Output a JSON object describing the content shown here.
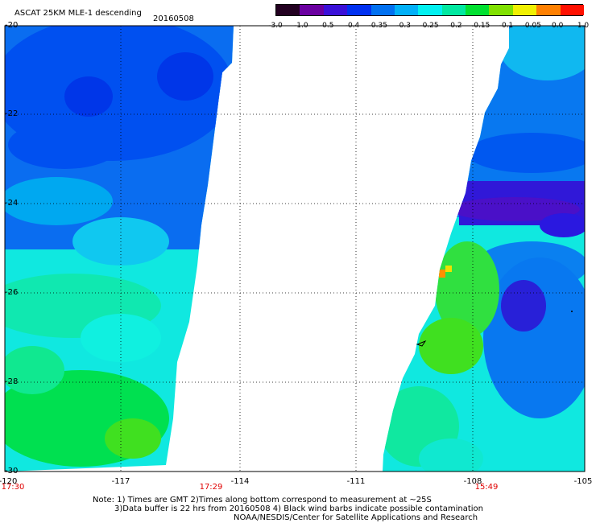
{
  "header": {
    "title": "ASCAT 25KM MLE-1 descending",
    "date": "20160508"
  },
  "colorbar": {
    "labels": [
      "-3.0",
      "-1.0",
      "-0.5",
      "-0.4",
      "-0.35",
      "-0.3",
      "-0.25",
      "-0.2",
      "-0.15",
      "-0.1",
      "-0.05",
      "0.0",
      "1.0"
    ],
    "colors": [
      "#220020",
      "#6a00a0",
      "#3a10d8",
      "#0030f0",
      "#0070f0",
      "#00b0f8",
      "#00f0f0",
      "#00e8a0",
      "#00e030",
      "#80e000",
      "#f0f000",
      "#ff8000",
      "#ff1000"
    ]
  },
  "axes": {
    "x_ticks": [
      "-120",
      "-117",
      "-114",
      "-111",
      "-108",
      "-105"
    ],
    "y_ticks": [
      "-20",
      "-22",
      "-24",
      "-26",
      "-28",
      "-30"
    ],
    "x_range": [
      -120,
      -105
    ],
    "y_range": [
      -30,
      -20
    ]
  },
  "times": {
    "left": "17:30",
    "mid": "17:29",
    "right": "15:49"
  },
  "notes": {
    "line1": "Note: 1) Times are GMT 2)Times along bottom correspond to measurement at ~25S",
    "line2": "3)Data buffer is 22 hrs from 20160508 4) Black wind barbs indicate possible contamination",
    "line3": "NOAA/NESDIS/Center for Satellite Applications and Research"
  }
}
